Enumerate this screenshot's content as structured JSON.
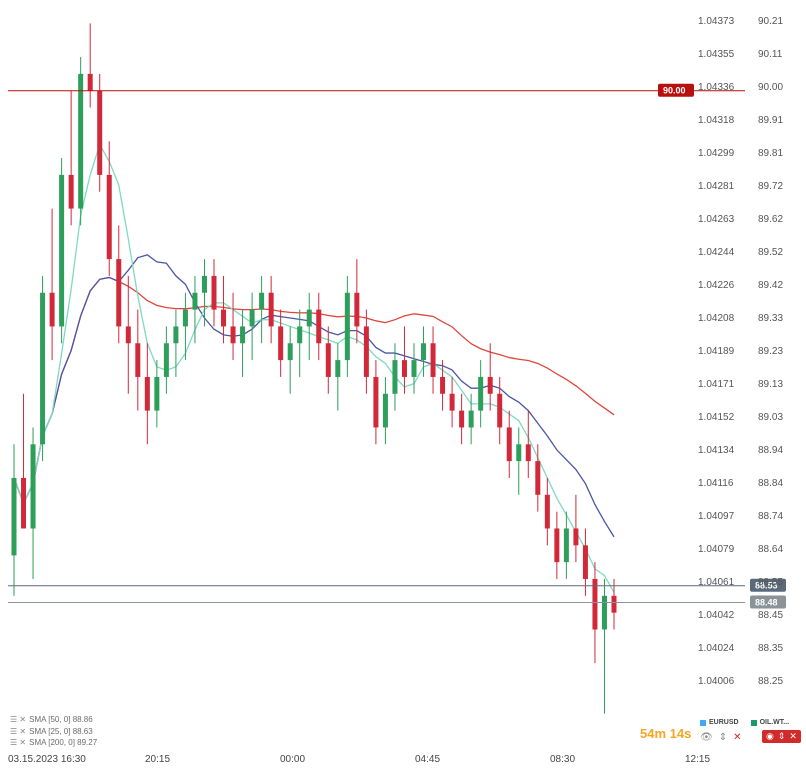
{
  "chart_data": {
    "type": "candlestick",
    "overlays": [
      {
        "name": "SMA [50, 0] 88.86",
        "color": "#4a56a6"
      },
      {
        "name": "SMA [25, 0] 88.63",
        "color": "#7fd9c0"
      },
      {
        "name": "SMA [200, 0] 89.27",
        "color": "#e0453a"
      }
    ],
    "y_axis_left_labels": [
      "1.04373",
      "1.04355",
      "1.04336",
      "1.04318",
      "1.04299",
      "1.04281",
      "1.04263",
      "1.04244",
      "1.04226",
      "1.04208",
      "1.04189",
      "1.04171",
      "1.04152",
      "1.04134",
      "1.04116",
      "1.04097",
      "1.04079",
      "1.04061",
      "1.04042",
      "1.04024",
      "1.04006"
    ],
    "y_axis_right_labels": [
      "90.21",
      "90.11",
      "90.00",
      "89.91",
      "89.81",
      "89.72",
      "89.62",
      "89.52",
      "89.42",
      "89.33",
      "89.23",
      "89.13",
      "89.03",
      "88.94",
      "88.84",
      "88.74",
      "88.64",
      "88.55",
      "88.45",
      "88.35",
      "88.25"
    ],
    "x_labels": [
      "03.15.2023 16:30",
      "20:15",
      "00:00",
      "04:45",
      "08:30",
      "12:15"
    ],
    "horizontal_lines": [
      {
        "label": "90.00",
        "value": 90.0,
        "color": "#b80f0f"
      },
      {
        "label": "88.53",
        "value": 88.53,
        "color": "#5a6a7a"
      },
      {
        "label": "88.48",
        "value": 88.48,
        "color": "#8a929a"
      }
    ],
    "candles": [
      [
        88.62,
        88.95,
        88.5,
        88.85
      ],
      [
        88.85,
        89.1,
        88.7,
        88.7
      ],
      [
        88.7,
        89.0,
        88.55,
        88.95
      ],
      [
        88.95,
        89.45,
        88.9,
        89.4
      ],
      [
        89.4,
        89.65,
        89.2,
        89.3
      ],
      [
        89.3,
        89.8,
        89.25,
        89.75
      ],
      [
        89.75,
        90.0,
        89.6,
        89.65
      ],
      [
        89.65,
        90.1,
        89.6,
        90.05
      ],
      [
        90.05,
        90.2,
        89.95,
        90.0
      ],
      [
        90.0,
        90.05,
        89.7,
        89.75
      ],
      [
        89.75,
        89.85,
        89.45,
        89.5
      ],
      [
        89.5,
        89.6,
        89.25,
        89.3
      ],
      [
        89.3,
        89.45,
        89.1,
        89.25
      ],
      [
        89.25,
        89.35,
        89.05,
        89.15
      ],
      [
        89.15,
        89.25,
        88.95,
        89.05
      ],
      [
        89.05,
        89.2,
        89.0,
        89.15
      ],
      [
        89.15,
        89.3,
        89.1,
        89.25
      ],
      [
        89.25,
        89.35,
        89.15,
        89.3
      ],
      [
        89.3,
        89.4,
        89.2,
        89.35
      ],
      [
        89.35,
        89.45,
        89.25,
        89.4
      ],
      [
        89.4,
        89.5,
        89.3,
        89.45
      ],
      [
        89.45,
        89.5,
        89.3,
        89.35
      ],
      [
        89.35,
        89.45,
        89.25,
        89.3
      ],
      [
        89.3,
        89.4,
        89.2,
        89.25
      ],
      [
        89.25,
        89.35,
        89.15,
        89.3
      ],
      [
        89.3,
        89.4,
        89.2,
        89.35
      ],
      [
        89.35,
        89.45,
        89.25,
        89.4
      ],
      [
        89.4,
        89.45,
        89.25,
        89.3
      ],
      [
        89.3,
        89.35,
        89.15,
        89.2
      ],
      [
        89.2,
        89.3,
        89.1,
        89.25
      ],
      [
        89.25,
        89.35,
        89.15,
        89.3
      ],
      [
        89.3,
        89.4,
        89.2,
        89.35
      ],
      [
        89.35,
        89.4,
        89.2,
        89.25
      ],
      [
        89.25,
        89.3,
        89.1,
        89.15
      ],
      [
        89.15,
        89.25,
        89.05,
        89.2
      ],
      [
        89.2,
        89.45,
        89.15,
        89.4
      ],
      [
        89.4,
        89.5,
        89.25,
        89.3
      ],
      [
        89.3,
        89.35,
        89.1,
        89.15
      ],
      [
        89.15,
        89.2,
        88.95,
        89.0
      ],
      [
        89.0,
        89.15,
        88.95,
        89.1
      ],
      [
        89.1,
        89.25,
        89.05,
        89.2
      ],
      [
        89.2,
        89.3,
        89.1,
        89.15
      ],
      [
        89.15,
        89.25,
        89.1,
        89.2
      ],
      [
        89.2,
        89.3,
        89.15,
        89.25
      ],
      [
        89.25,
        89.3,
        89.1,
        89.15
      ],
      [
        89.15,
        89.2,
        89.05,
        89.1
      ],
      [
        89.1,
        89.15,
        89.0,
        89.05
      ],
      [
        89.05,
        89.1,
        88.95,
        89.0
      ],
      [
        89.0,
        89.1,
        88.95,
        89.05
      ],
      [
        89.05,
        89.2,
        89.0,
        89.15
      ],
      [
        89.15,
        89.25,
        89.05,
        89.1
      ],
      [
        89.1,
        89.15,
        88.95,
        89.0
      ],
      [
        89.0,
        89.05,
        88.85,
        88.9
      ],
      [
        88.9,
        89.0,
        88.8,
        88.95
      ],
      [
        88.95,
        89.05,
        88.85,
        88.9
      ],
      [
        88.9,
        88.95,
        88.75,
        88.8
      ],
      [
        88.8,
        88.85,
        88.65,
        88.7
      ],
      [
        88.7,
        88.75,
        88.55,
        88.6
      ],
      [
        88.6,
        88.75,
        88.55,
        88.7
      ],
      [
        88.7,
        88.8,
        88.6,
        88.65
      ],
      [
        88.65,
        88.7,
        88.5,
        88.55
      ],
      [
        88.55,
        88.6,
        88.3,
        88.4
      ],
      [
        88.4,
        88.55,
        88.15,
        88.5
      ],
      [
        88.5,
        88.55,
        88.4,
        88.45
      ]
    ]
  },
  "legend": {
    "sma50": "SMA [50, 0] 88.86",
    "sma25": "SMA [25, 0] 88.63",
    "sma200": "SMA [200, 0] 89.27"
  },
  "symbols": {
    "s1": {
      "label": "EURUSD",
      "color": "#3fa9f5"
    },
    "s2": {
      "label": "OIL.WT...",
      "color": "#1a9a6a"
    }
  },
  "timer": "54m 14s",
  "colors": {
    "up": "#2e9e5b",
    "down": "#d1293a",
    "accent": "#b80f0f"
  }
}
